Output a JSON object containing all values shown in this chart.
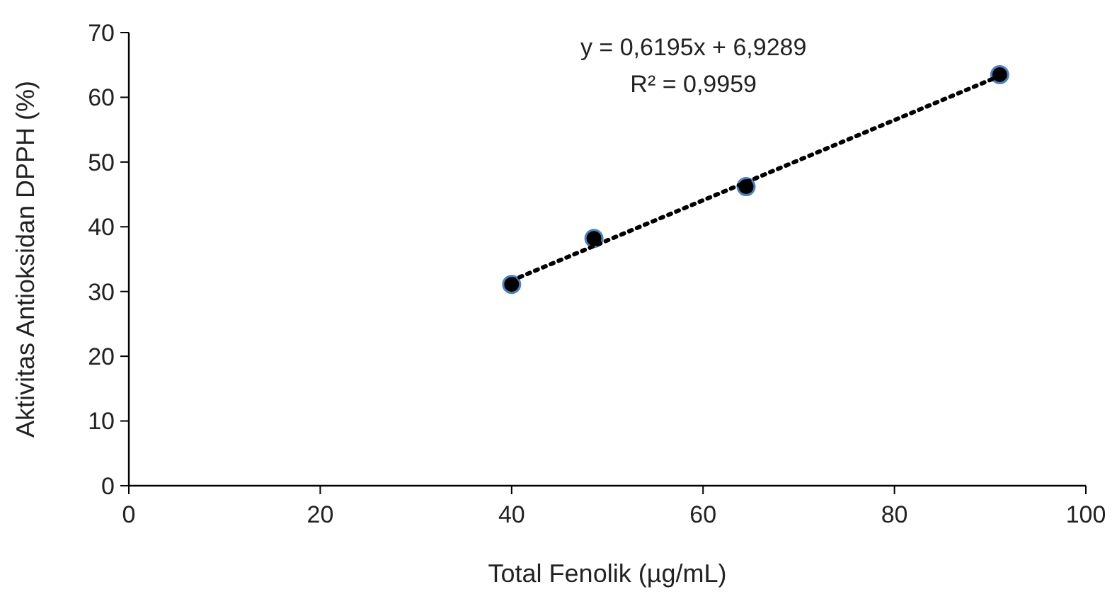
{
  "chart_data": {
    "type": "scatter",
    "xlabel": "Total Fenolik (µg/mL)",
    "ylabel": "Aktivitas Antioksidan DPPH (%)",
    "xlim": [
      0,
      100
    ],
    "xticks": [
      0,
      20,
      40,
      60,
      80,
      100
    ],
    "ylim": [
      0,
      70
    ],
    "yticks": [
      0,
      10,
      20,
      30,
      40,
      50,
      60,
      70
    ],
    "grid": false,
    "marker": "circle",
    "series": [
      {
        "color": "#000000",
        "x": [
          40,
          48.6,
          64.5,
          91
        ],
        "values": [
          31.1,
          38.2,
          46.2,
          63.5
        ]
      },
      {
        "type": "line",
        "color": "#000000",
        "line_style": "dotted",
        "marker": "none",
        "x": [
          40,
          91
        ],
        "values": [
          31.7,
          63.3
        ]
      }
    ],
    "annotations": [
      "y = 0,6195x + 6,9289",
      "R² = 0,9959"
    ]
  }
}
